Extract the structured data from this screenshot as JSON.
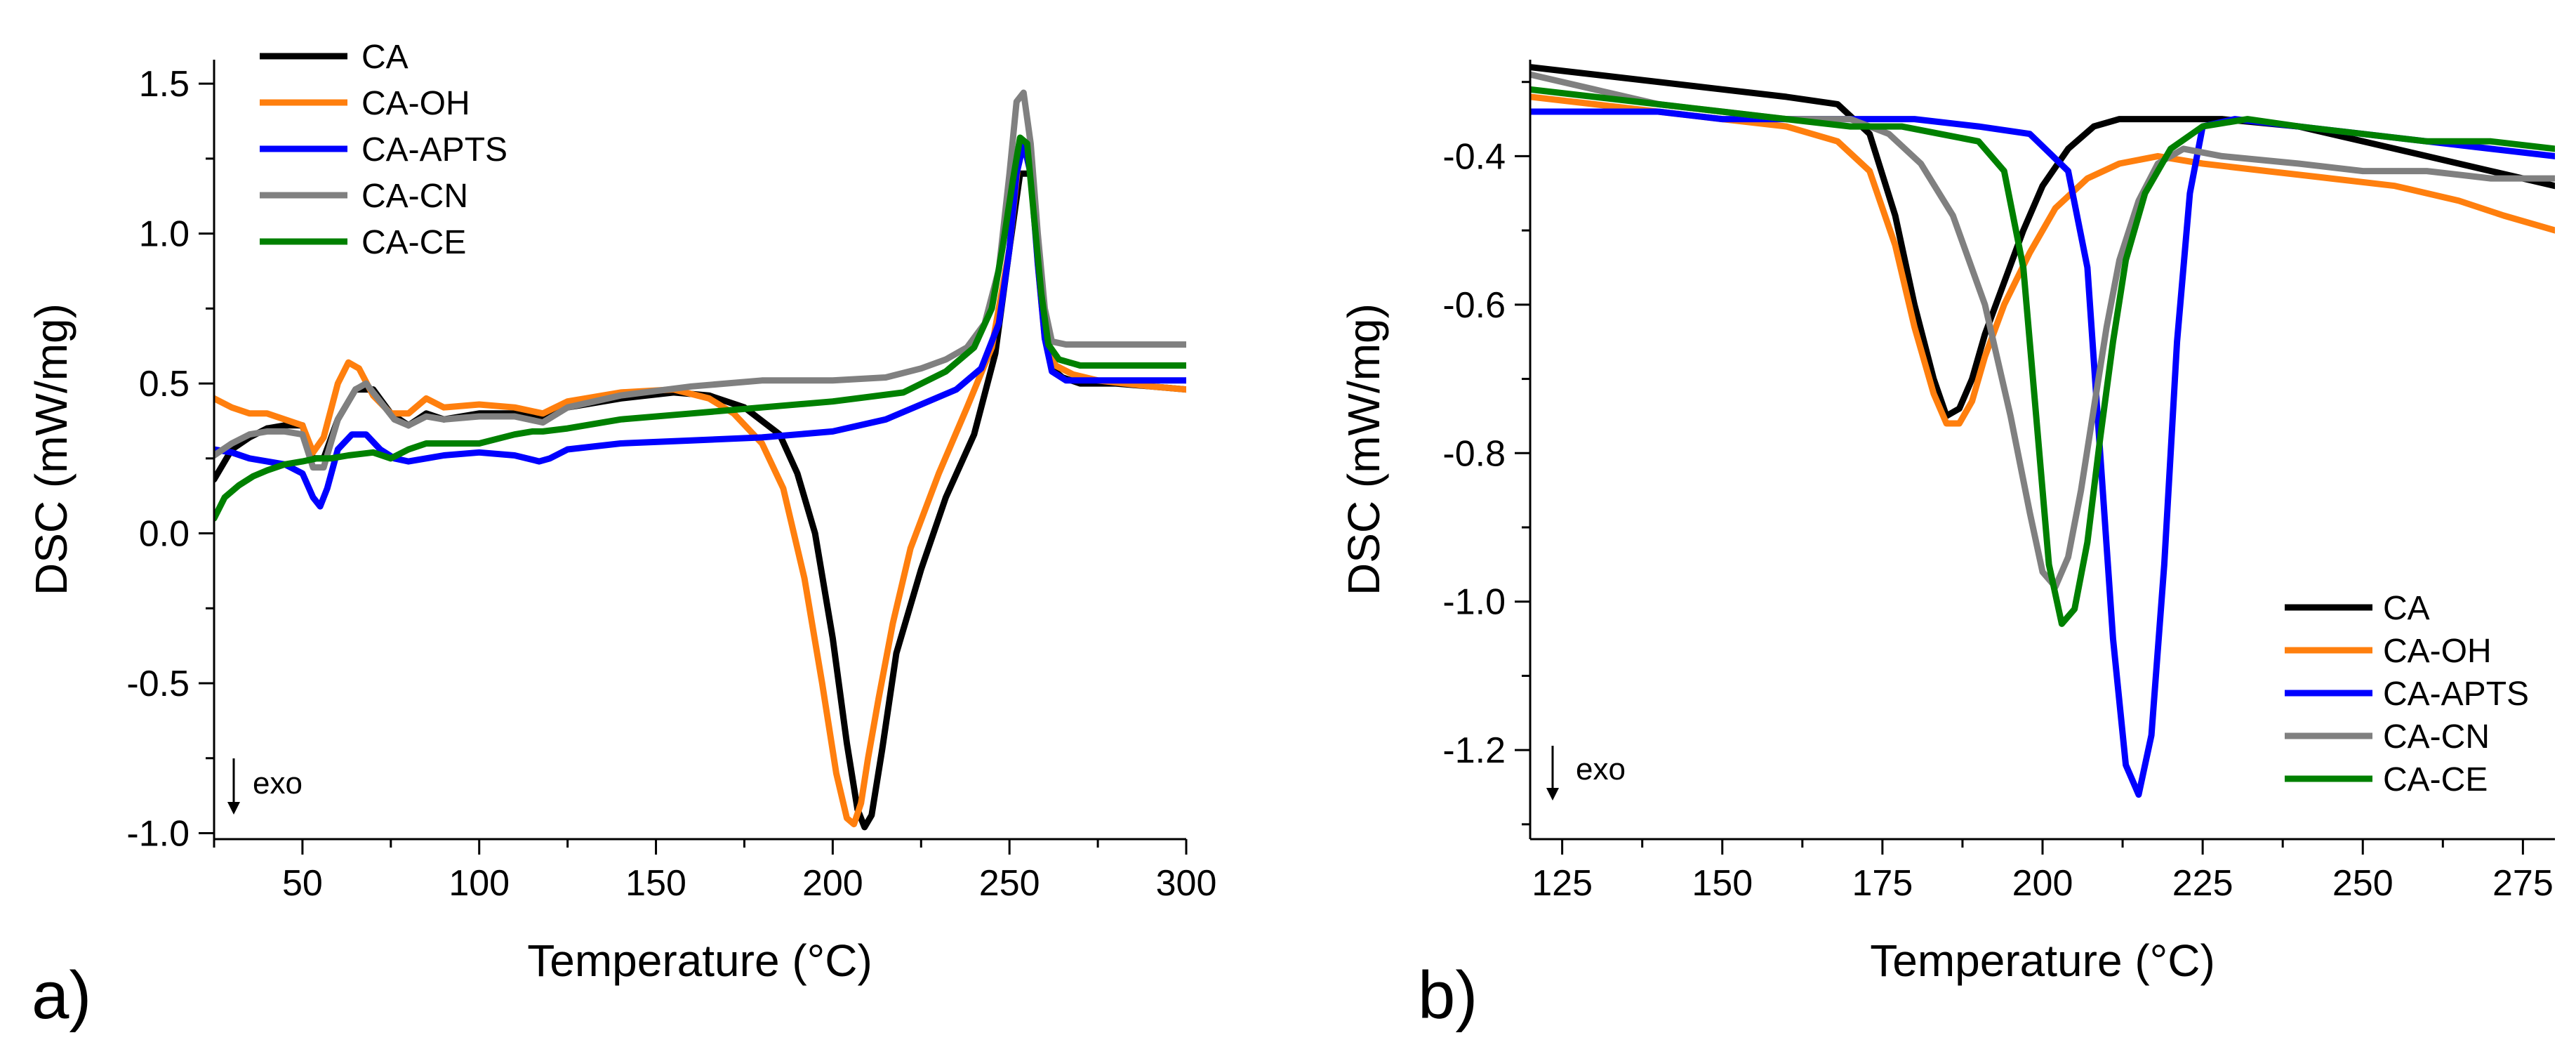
{
  "panels": [
    {
      "label": "a)",
      "exo_label": "exo",
      "legend": [
        "CA",
        "CA-OH",
        "CA-APTS",
        "CA-CN",
        "CA-CE"
      ]
    },
    {
      "label": "b)",
      "exo_label": "exo",
      "legend": [
        "CA",
        "CA-OH",
        "CA-APTS",
        "CA-CN",
        "CA-CE"
      ]
    }
  ],
  "colors": {
    "CA": "#000000",
    "CA-OH": "#ff7f0e",
    "CA-APTS": "#0000ff",
    "CA-CN": "#808080",
    "CA-CE": "#008000"
  },
  "chart_data": [
    {
      "type": "line",
      "xlabel": "Temperature (°C)",
      "ylabel": "DSC (mW/mg)",
      "xlim": [
        25,
        300
      ],
      "ylim": [
        -1.02,
        1.58
      ],
      "xticks": [
        50,
        100,
        150,
        200,
        250,
        300
      ],
      "yticks": [
        -1.0,
        -0.5,
        0.0,
        0.5,
        1.0,
        1.5
      ],
      "ytick_labels": [
        "-1.0",
        "-0.5",
        "0.0",
        "0.5",
        "1.0",
        "1.5"
      ],
      "legend_position": "top-left",
      "series": [
        {
          "name": "CA",
          "x": [
            25,
            30,
            35,
            40,
            45,
            50,
            53,
            56,
            60,
            65,
            70,
            75,
            80,
            85,
            90,
            100,
            110,
            118,
            125,
            140,
            155,
            165,
            175,
            185,
            190,
            195,
            200,
            204,
            207,
            209,
            211,
            214,
            218,
            225,
            232,
            240,
            246,
            250,
            253,
            256,
            258,
            260,
            262,
            265,
            270,
            280,
            290,
            300
          ],
          "y": [
            0.18,
            0.28,
            0.32,
            0.35,
            0.36,
            0.36,
            0.25,
            0.25,
            0.38,
            0.48,
            0.48,
            0.4,
            0.36,
            0.4,
            0.38,
            0.4,
            0.4,
            0.38,
            0.42,
            0.45,
            0.47,
            0.46,
            0.42,
            0.33,
            0.2,
            0.0,
            -0.35,
            -0.7,
            -0.92,
            -0.98,
            -0.94,
            -0.72,
            -0.4,
            -0.12,
            0.12,
            0.33,
            0.6,
            0.95,
            1.2,
            1.2,
            0.95,
            0.7,
            0.55,
            0.52,
            0.5,
            0.5,
            0.49,
            0.48
          ]
        },
        {
          "name": "CA-OH",
          "x": [
            25,
            30,
            35,
            40,
            45,
            50,
            53,
            56,
            60,
            63,
            66,
            70,
            75,
            80,
            85,
            90,
            100,
            110,
            118,
            125,
            140,
            155,
            165,
            172,
            180,
            186,
            192,
            197,
            201,
            204,
            206,
            208,
            210,
            213,
            217,
            222,
            230,
            238,
            245,
            250,
            253,
            256,
            258,
            260,
            263,
            268,
            275,
            290,
            300
          ],
          "y": [
            0.45,
            0.42,
            0.4,
            0.4,
            0.38,
            0.36,
            0.27,
            0.32,
            0.5,
            0.57,
            0.55,
            0.46,
            0.4,
            0.4,
            0.45,
            0.42,
            0.43,
            0.42,
            0.4,
            0.44,
            0.47,
            0.48,
            0.45,
            0.4,
            0.3,
            0.15,
            -0.15,
            -0.5,
            -0.8,
            -0.95,
            -0.97,
            -0.9,
            -0.75,
            -0.55,
            -0.3,
            -0.05,
            0.2,
            0.42,
            0.62,
            0.95,
            1.3,
            1.25,
            0.9,
            0.65,
            0.56,
            0.53,
            0.51,
            0.49,
            0.48
          ]
        },
        {
          "name": "CA-APTS",
          "x": [
            25,
            30,
            35,
            40,
            45,
            50,
            53,
            55,
            57,
            60,
            64,
            68,
            72,
            76,
            80,
            85,
            90,
            100,
            110,
            117,
            120,
            125,
            140,
            160,
            180,
            200,
            215,
            225,
            235,
            242,
            247,
            250,
            252,
            254,
            256,
            258,
            260,
            262,
            266,
            275,
            290,
            300
          ],
          "y": [
            0.28,
            0.27,
            0.25,
            0.24,
            0.23,
            0.2,
            0.12,
            0.09,
            0.15,
            0.28,
            0.33,
            0.33,
            0.28,
            0.25,
            0.24,
            0.25,
            0.26,
            0.27,
            0.26,
            0.24,
            0.25,
            0.28,
            0.3,
            0.31,
            0.32,
            0.34,
            0.38,
            0.43,
            0.48,
            0.55,
            0.7,
            0.95,
            1.2,
            1.3,
            1.2,
            0.9,
            0.65,
            0.54,
            0.51,
            0.51,
            0.51,
            0.51
          ]
        },
        {
          "name": "CA-CN",
          "x": [
            25,
            30,
            35,
            40,
            45,
            50,
            53,
            56,
            60,
            65,
            68,
            72,
            76,
            80,
            85,
            90,
            100,
            110,
            118,
            125,
            140,
            160,
            180,
            200,
            215,
            225,
            232,
            238,
            243,
            247,
            250,
            252,
            254,
            256,
            258,
            260,
            262,
            266,
            275,
            290,
            300
          ],
          "y": [
            0.26,
            0.3,
            0.33,
            0.34,
            0.34,
            0.33,
            0.22,
            0.22,
            0.38,
            0.48,
            0.5,
            0.44,
            0.38,
            0.36,
            0.39,
            0.38,
            0.39,
            0.39,
            0.37,
            0.42,
            0.46,
            0.49,
            0.51,
            0.51,
            0.52,
            0.55,
            0.58,
            0.62,
            0.7,
            0.88,
            1.2,
            1.44,
            1.47,
            1.3,
            1.0,
            0.75,
            0.64,
            0.63,
            0.63,
            0.63,
            0.63
          ]
        },
        {
          "name": "CA-CE",
          "x": [
            25,
            28,
            32,
            36,
            40,
            45,
            50,
            54,
            58,
            63,
            70,
            75,
            80,
            85,
            90,
            100,
            110,
            115,
            118,
            125,
            140,
            160,
            180,
            200,
            220,
            232,
            240,
            245,
            248,
            251,
            253,
            255,
            257,
            259,
            261,
            264,
            270,
            280,
            300
          ],
          "y": [
            0.05,
            0.12,
            0.16,
            0.19,
            0.21,
            0.23,
            0.24,
            0.25,
            0.25,
            0.26,
            0.27,
            0.25,
            0.28,
            0.3,
            0.3,
            0.3,
            0.33,
            0.34,
            0.34,
            0.35,
            0.38,
            0.4,
            0.42,
            0.44,
            0.47,
            0.54,
            0.62,
            0.75,
            0.95,
            1.18,
            1.32,
            1.3,
            1.05,
            0.8,
            0.63,
            0.58,
            0.56,
            0.56,
            0.56
          ]
        }
      ]
    },
    {
      "type": "line",
      "xlabel": "Temperature (°C)",
      "ylabel": "DSC (mW/mg)",
      "xlim": [
        120,
        280
      ],
      "ylim": [
        -1.32,
        -0.27
      ],
      "xticks": [
        125,
        150,
        175,
        200,
        225,
        250,
        275
      ],
      "yticks": [
        -1.2,
        -1.0,
        -0.8,
        -0.6,
        -0.4
      ],
      "ytick_labels": [
        "-1.2",
        "-1.0",
        "-0.8",
        "-0.6",
        "-0.4"
      ],
      "legend_position": "bottom-right",
      "series": [
        {
          "name": "CA",
          "x": [
            120,
            130,
            140,
            150,
            160,
            168,
            173,
            177,
            180,
            183,
            185,
            187,
            189,
            191,
            194,
            197,
            200,
            204,
            208,
            212,
            216,
            220,
            228,
            240,
            250,
            260,
            270,
            280
          ],
          "y": [
            -0.28,
            -0.29,
            -0.3,
            -0.31,
            -0.32,
            -0.33,
            -0.37,
            -0.48,
            -0.6,
            -0.7,
            -0.75,
            -0.74,
            -0.7,
            -0.64,
            -0.57,
            -0.5,
            -0.44,
            -0.39,
            -0.36,
            -0.35,
            -0.35,
            -0.35,
            -0.35,
            -0.36,
            -0.38,
            -0.4,
            -0.42,
            -0.44
          ]
        },
        {
          "name": "CA-OH",
          "x": [
            120,
            130,
            140,
            150,
            160,
            168,
            173,
            177,
            180,
            183,
            185,
            187,
            189,
            191,
            194,
            198,
            202,
            207,
            212,
            218,
            225,
            235,
            245,
            255,
            265,
            272,
            280
          ],
          "y": [
            -0.32,
            -0.33,
            -0.34,
            -0.35,
            -0.36,
            -0.38,
            -0.42,
            -0.52,
            -0.63,
            -0.72,
            -0.76,
            -0.76,
            -0.73,
            -0.67,
            -0.6,
            -0.53,
            -0.47,
            -0.43,
            -0.41,
            -0.4,
            -0.41,
            -0.42,
            -0.43,
            -0.44,
            -0.46,
            -0.48,
            -0.5
          ]
        },
        {
          "name": "CA-APTS",
          "x": [
            120,
            130,
            140,
            150,
            160,
            170,
            180,
            190,
            198,
            204,
            207,
            209,
            211,
            213,
            215,
            217,
            219,
            221,
            223,
            225,
            230,
            240,
            250,
            260,
            270,
            280
          ],
          "y": [
            -0.34,
            -0.34,
            -0.34,
            -0.35,
            -0.35,
            -0.35,
            -0.35,
            -0.36,
            -0.37,
            -0.42,
            -0.55,
            -0.8,
            -1.05,
            -1.22,
            -1.26,
            -1.18,
            -0.95,
            -0.65,
            -0.45,
            -0.36,
            -0.35,
            -0.36,
            -0.37,
            -0.38,
            -0.39,
            -0.4
          ]
        },
        {
          "name": "CA-CN",
          "x": [
            120,
            130,
            140,
            150,
            160,
            170,
            176,
            181,
            186,
            191,
            195,
            198,
            200,
            202,
            204,
            206,
            208,
            210,
            212,
            215,
            218,
            222,
            228,
            240,
            250,
            260,
            270,
            280
          ],
          "y": [
            -0.29,
            -0.31,
            -0.33,
            -0.34,
            -0.35,
            -0.35,
            -0.37,
            -0.41,
            -0.48,
            -0.6,
            -0.75,
            -0.88,
            -0.96,
            -0.98,
            -0.94,
            -0.85,
            -0.74,
            -0.63,
            -0.54,
            -0.46,
            -0.41,
            -0.39,
            -0.4,
            -0.41,
            -0.42,
            -0.42,
            -0.43,
            -0.43
          ]
        },
        {
          "name": "CA-CE",
          "x": [
            120,
            130,
            140,
            150,
            160,
            170,
            178,
            184,
            190,
            194,
            197,
            199,
            201,
            203,
            205,
            207,
            209,
            211,
            213,
            216,
            220,
            225,
            232,
            240,
            250,
            260,
            270,
            280
          ],
          "y": [
            -0.31,
            -0.32,
            -0.33,
            -0.34,
            -0.35,
            -0.36,
            -0.36,
            -0.37,
            -0.38,
            -0.42,
            -0.55,
            -0.75,
            -0.95,
            -1.03,
            -1.01,
            -0.92,
            -0.78,
            -0.65,
            -0.54,
            -0.45,
            -0.39,
            -0.36,
            -0.35,
            -0.36,
            -0.37,
            -0.38,
            -0.38,
            -0.39
          ]
        }
      ]
    }
  ]
}
